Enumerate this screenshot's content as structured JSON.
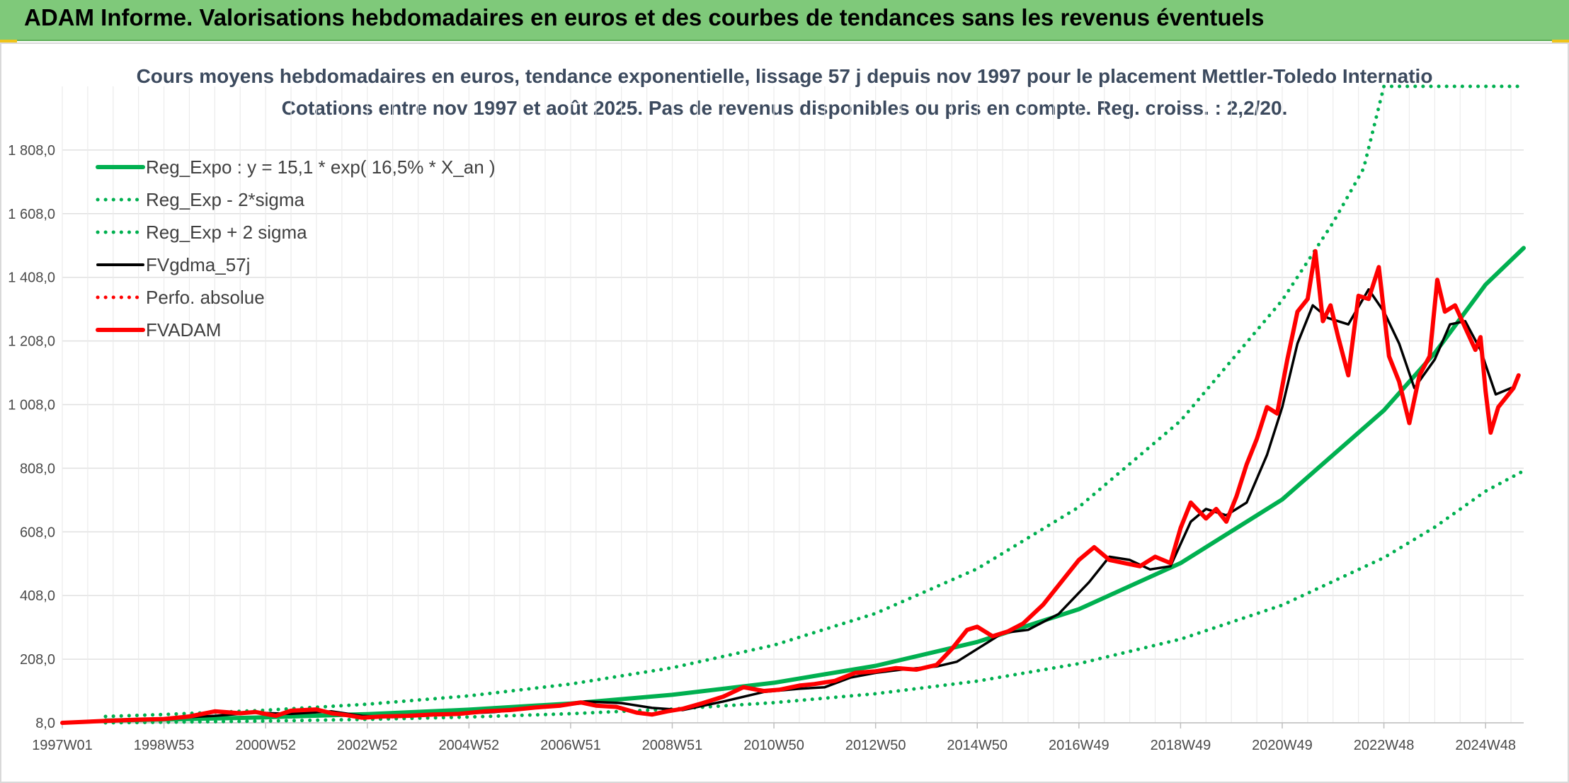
{
  "header": {
    "title": "ADAM Informe. Valorisations hebdomadaires en euros et des courbes de tendances sans les revenus éventuels"
  },
  "colors": {
    "header_bg": "#7fc97a",
    "trend": "#00b050",
    "price": "#ff0000",
    "smooth": "#000000",
    "grid": "#e0e0e0"
  },
  "chart_data": {
    "type": "line",
    "title": "Cours moyens hebdomadaires en euros, tendance exponentielle, lissage 57 j depuis nov 1997 pour le placement Mettler-Toledo Internatio",
    "subtitle": "Cotations entre nov 1997 et août 2025. Pas de revenus disponibles ou pris en compte. Reg. croiss. : 2,2/20.",
    "xlabel": "",
    "ylabel": "",
    "ylim": [
      8.0,
      2008.0
    ],
    "y_ticks": [
      "8,0",
      "208,0",
      "408,0",
      "608,0",
      "808,0",
      "1 008,0",
      "1 208,0",
      "1 408,0",
      "1 608,0",
      "1 808,0"
    ],
    "y_tick_values": [
      8,
      208,
      408,
      608,
      808,
      1008,
      1208,
      1408,
      1608,
      1808
    ],
    "xlim": [
      1997.0,
      2025.75
    ],
    "x_ticks": [
      "1997W01",
      "1998W53",
      "2000W52",
      "2002W52",
      "2004W52",
      "2006W51",
      "2008W51",
      "2010W50",
      "2012W50",
      "2014W50",
      "2016W49",
      "2018W49",
      "2020W49",
      "2022W48",
      "2024W48"
    ],
    "x_tick_values": [
      1997.0,
      1999.0,
      2001.0,
      2003.0,
      2005.0,
      2007.0,
      2009.0,
      2011.0,
      2013.0,
      2015.0,
      2017.0,
      2019.0,
      2021.0,
      2023.0,
      2025.0
    ],
    "grid": true,
    "legend_position": "top-left",
    "legend": [
      {
        "name": "Reg_Expo : y = 15,1 * exp( 16,5% *  X_an )",
        "style": "solid-thick",
        "color": "#00b050"
      },
      {
        "name": "Reg_Exp - 2*sigma",
        "style": "dotted",
        "color": "#00b050"
      },
      {
        "name": "Reg_Exp + 2 sigma",
        "style": "dotted",
        "color": "#00b050"
      },
      {
        "name": "FVgdma_57j",
        "style": "solid",
        "color": "#000000"
      },
      {
        "name": "Perfo. absolue",
        "style": "dotted",
        "color": "#ff0000"
      },
      {
        "name": "FVADAM",
        "style": "solid-thick",
        "color": "#ff0000"
      }
    ],
    "series": [
      {
        "name": "Reg_Expo : y = 15,1 * exp( 16,5% *  X_an )",
        "x": [
          1997.85,
          1999.0,
          2001.0,
          2003.0,
          2005.0,
          2007.0,
          2009.0,
          2011.0,
          2013.0,
          2015.0,
          2017.0,
          2019.0,
          2021.0,
          2023.0,
          2024.0,
          2025.0,
          2025.75
        ],
        "values": [
          15.1,
          18.2,
          25.3,
          35.3,
          49.3,
          68.8,
          96.0,
          134,
          187,
          262,
          365,
          510,
          710,
          990,
          1170,
          1385,
          1500
        ]
      },
      {
        "name": "Reg_Exp - 2*sigma",
        "x": [
          1997.85,
          1999.0,
          2001.0,
          2003.0,
          2005.0,
          2007.0,
          2009.0,
          2011.0,
          2013.0,
          2015.0,
          2017.0,
          2019.0,
          2021.0,
          2023.0,
          2024.0,
          2025.0,
          2025.75
        ],
        "values": [
          8.0,
          9.7,
          13.5,
          18.8,
          26.2,
          36.6,
          51.1,
          71.3,
          99.5,
          139,
          194,
          271,
          378,
          527,
          623,
          736,
          800
        ]
      },
      {
        "name": "Reg_Exp + 2 sigma",
        "x": [
          1997.85,
          1999.0,
          2001.0,
          2003.0,
          2005.0,
          2007.0,
          2009.0,
          2011.0,
          2013.0,
          2015.0,
          2017.0,
          2019.0,
          2021.0,
          2022.0,
          2022.6,
          2023.0,
          2025.75
        ],
        "values": [
          28.0,
          34.2,
          47.7,
          66.5,
          92.8,
          130,
          181,
          252,
          352,
          492,
          686,
          957,
          1336,
          1580,
          1750,
          2008,
          2008
        ]
      },
      {
        "name": "FVgdma_57j",
        "x": [
          1997.0,
          1997.85,
          1999.0,
          2000.0,
          2000.8,
          2001.5,
          2002.3,
          2002.9,
          2003.5,
          2004.5,
          2005.5,
          2006.5,
          2007.3,
          2008.0,
          2008.6,
          2009.2,
          2010.0,
          2010.8,
          2011.5,
          2012.0,
          2012.5,
          2013.0,
          2013.5,
          2014.2,
          2014.6,
          2015.0,
          2015.5,
          2016.0,
          2016.6,
          2017.2,
          2017.6,
          2018.0,
          2018.4,
          2018.8,
          2019.2,
          2019.5,
          2019.9,
          2020.3,
          2020.7,
          2021.0,
          2021.3,
          2021.6,
          2021.9,
          2022.3,
          2022.7,
          2023.0,
          2023.3,
          2023.6,
          2024.0,
          2024.3,
          2024.6,
          2024.9,
          2025.2,
          2025.5
        ],
        "values": [
          8,
          12,
          22,
          30,
          40,
          36,
          44,
          30,
          26,
          34,
          42,
          58,
          75,
          70,
          55,
          48,
          75,
          105,
          115,
          120,
          150,
          165,
          175,
          185,
          200,
          240,
          290,
          300,
          350,
          450,
          530,
          520,
          490,
          500,
          640,
          680,
          660,
          700,
          850,
          1000,
          1200,
          1320,
          1280,
          1260,
          1370,
          1300,
          1200,
          1060,
          1150,
          1260,
          1270,
          1180,
          1040,
          1060
        ]
      },
      {
        "name": "FVADAM",
        "x": [
          1997.0,
          1997.85,
          1998.5,
          1999.0,
          1999.5,
          2000.0,
          2000.5,
          2000.8,
          2001.2,
          2001.5,
          2002.0,
          2002.3,
          2002.6,
          2002.9,
          2003.3,
          2003.8,
          2004.3,
          2004.8,
          2005.3,
          2005.8,
          2006.3,
          2006.8,
          2007.2,
          2007.5,
          2007.9,
          2008.3,
          2008.6,
          2008.9,
          2009.2,
          2009.6,
          2010.0,
          2010.4,
          2010.8,
          2011.1,
          2011.5,
          2011.8,
          2012.2,
          2012.6,
          2013.0,
          2013.4,
          2013.8,
          2014.2,
          2014.5,
          2014.8,
          2015.0,
          2015.3,
          2015.6,
          2015.9,
          2016.3,
          2016.7,
          2017.0,
          2017.3,
          2017.6,
          2017.9,
          2018.2,
          2018.5,
          2018.8,
          2019.0,
          2019.2,
          2019.5,
          2019.7,
          2019.9,
          2020.1,
          2020.3,
          2020.5,
          2020.7,
          2020.9,
          2021.1,
          2021.3,
          2021.5,
          2021.65,
          2021.8,
          2021.95,
          2022.1,
          2022.3,
          2022.5,
          2022.7,
          2022.9,
          2023.1,
          2023.3,
          2023.5,
          2023.7,
          2023.9,
          2024.05,
          2024.2,
          2024.4,
          2024.6,
          2024.8,
          2024.9,
          2025.0,
          2025.1,
          2025.25,
          2025.4,
          2025.55,
          2025.65
        ],
        "values": [
          8,
          14,
          18,
          20,
          28,
          44,
          38,
          42,
          30,
          46,
          50,
          38,
          32,
          24,
          28,
          30,
          34,
          36,
          44,
          48,
          56,
          62,
          72,
          62,
          58,
          40,
          34,
          44,
          52,
          70,
          90,
          120,
          108,
          112,
          125,
          130,
          140,
          165,
          170,
          180,
          175,
          190,
          240,
          300,
          310,
          280,
          295,
          320,
          380,
          460,
          520,
          560,
          520,
          510,
          500,
          530,
          510,
          620,
          700,
          650,
          680,
          640,
          720,
          820,
          900,
          1000,
          980,
          1150,
          1300,
          1340,
          1490,
          1270,
          1320,
          1220,
          1100,
          1350,
          1340,
          1440,
          1160,
          1080,
          950,
          1100,
          1160,
          1400,
          1300,
          1320,
          1250,
          1180,
          1220,
          1050,
          920,
          1000,
          1030,
          1060,
          1100
        ]
      }
    ]
  }
}
